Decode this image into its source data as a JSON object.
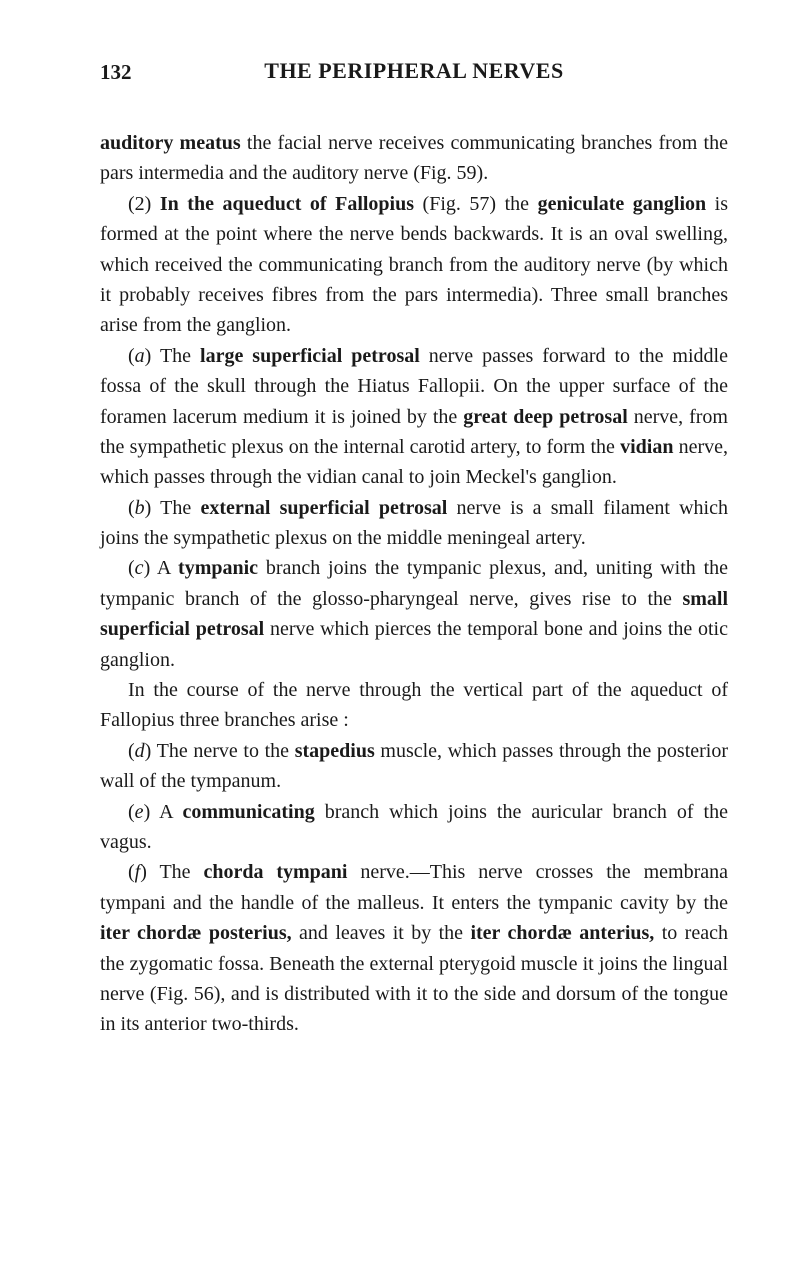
{
  "page_number": "132",
  "page_title": "THE PERIPHERAL NERVES",
  "paragraphs": {
    "p1_part1": "auditory meatus",
    "p1_part2": " the facial nerve receives communicating branches from the pars intermedia and the auditory nerve (Fig. 59).",
    "p2_part1": "(2) ",
    "p2_bold1": "In the aqueduct of Fallopius",
    "p2_part2": " (Fig. 57) the ",
    "p2_bold2": "geniculate ganglion",
    "p2_part3": " is formed at the point where the nerve bends backwards. It is an oval swelling, which received the communicating branch from the auditory nerve (by which it probably receives fibres from the pars intermedia). Three small branches arise from the ganglion.",
    "p3_part1": "(",
    "p3_italic1": "a",
    "p3_part2": ") The ",
    "p3_bold1": "large superficial petrosal",
    "p3_part3": " nerve passes forward to the middle fossa of the skull through the Hiatus Fallopii. On the upper surface of the foramen lacerum medium it is joined by the ",
    "p3_bold2": "great deep petrosal",
    "p3_part4": " nerve, from the sym­pathetic plexus on the internal carotid artery, to form the ",
    "p3_bold3": "vidian",
    "p3_part5": " nerve, which passes through the vidian canal to join Meckel's ganglion.",
    "p4_part1": "(",
    "p4_italic1": "b",
    "p4_part2": ") The ",
    "p4_bold1": "external superficial petrosal",
    "p4_part3": " nerve is a small filament which joins the sympathetic plexus on the middle meningeal artery.",
    "p5_part1": "(",
    "p5_italic1": "c",
    "p5_part2": ") A ",
    "p5_bold1": "tympanic",
    "p5_part3": " branch joins the tympanic plexus, and, uniting with the tympanic branch of the glosso-pharyn­geal nerve, gives rise to the ",
    "p5_bold2": "small superficial petrosal",
    "p5_part4": " nerve which pierces the temporal bone and joins the otic ganglion.",
    "p6": "In the course of the nerve through the vertical part of the aqueduct of Fallopius three branches arise :",
    "p7_part1": "(",
    "p7_italic1": "d",
    "p7_part2": ") The nerve to the ",
    "p7_bold1": "stapedius",
    "p7_part3": " muscle, which passes through the posterior wall of the tympanum.",
    "p8_part1": "(",
    "p8_italic1": "e",
    "p8_part2": ") A ",
    "p8_bold1": "communicating",
    "p8_part3": " branch which joins the auricular branch of the vagus.",
    "p9_part1": "(",
    "p9_italic1": "f",
    "p9_part2": ") The ",
    "p9_bold1": "chorda tympani",
    "p9_part3": " nerve.—This nerve crosses the membrana tympani and the handle of the malleus. It enters the tympanic cavity by the ",
    "p9_bold2": "iter chordæ posterius,",
    "p9_part4": " and leaves it by the ",
    "p9_bold3": "iter chordæ anterius,",
    "p9_part5": " to reach the zygomatic fossa. Beneath the external pterygoid muscle it joins the lingual nerve (Fig. 56), and is distributed with it to the side and dorsum of the tongue in its anterior two-thirds."
  }
}
